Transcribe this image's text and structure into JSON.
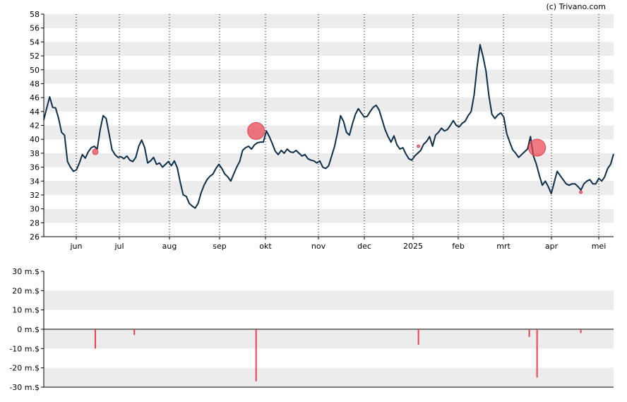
{
  "credit": "(c) Trivano.com",
  "chart_data": [
    {
      "type": "line",
      "title": "",
      "xlabel": "",
      "ylabel": "",
      "ylim": [
        26,
        58
      ],
      "y_ticks": [
        26,
        28,
        30,
        32,
        34,
        36,
        38,
        40,
        42,
        44,
        46,
        48,
        50,
        52,
        54,
        56,
        58
      ],
      "grid": "alternating horizontal bands, dotted vertical month lines",
      "x_tick_labels": [
        "jun",
        "jul",
        "aug",
        "sep",
        "okt",
        "nov",
        "dec",
        "2025",
        "feb",
        "mrt",
        "apr",
        "mei"
      ],
      "series": [
        {
          "color": "#0b2f4a",
          "x_range": [
            "2024-05-13",
            "2025-05-13"
          ],
          "values": [
            42.8,
            44.5,
            46.1,
            44.6,
            44.5,
            43.0,
            41.0,
            40.6,
            36.8,
            36.0,
            35.4,
            35.6,
            36.6,
            37.8,
            37.3,
            38.2,
            38.8,
            39.0,
            38.6,
            41.4,
            43.4,
            43.0,
            40.8,
            38.5,
            37.8,
            37.4,
            37.5,
            37.2,
            37.6,
            37.0,
            36.8,
            37.4,
            39.0,
            39.9,
            38.8,
            36.6,
            36.9,
            37.4,
            36.4,
            36.6,
            36.0,
            36.4,
            36.8,
            36.2,
            36.9,
            35.9,
            33.8,
            32.0,
            31.8,
            30.8,
            30.4,
            30.1,
            30.8,
            32.3,
            33.4,
            34.2,
            34.7,
            35.0,
            35.8,
            36.4,
            35.8,
            35.0,
            34.6,
            34.0,
            35.0,
            36.0,
            36.8,
            38.4,
            38.8,
            39.0,
            38.6,
            39.2,
            39.5,
            39.6,
            39.6,
            41.2,
            40.4,
            39.4,
            38.3,
            37.8,
            38.4,
            38.0,
            38.6,
            38.2,
            38.1,
            38.4,
            38.0,
            37.6,
            37.8,
            37.2,
            37.0,
            36.9,
            36.6,
            36.9,
            36.0,
            35.8,
            36.2,
            37.6,
            39.0,
            41.0,
            43.4,
            42.6,
            41.0,
            40.6,
            42.2,
            43.6,
            44.4,
            43.8,
            43.2,
            43.3,
            44.0,
            44.6,
            44.9,
            44.2,
            42.8,
            41.4,
            40.4,
            39.6,
            40.5,
            39.2,
            38.6,
            38.8,
            37.9,
            37.2,
            37.0,
            37.6,
            38.0,
            38.4,
            39.3,
            39.7,
            40.4,
            39.0,
            40.6,
            41.0,
            41.6,
            41.2,
            41.4,
            42.0,
            42.7,
            42.0,
            41.8,
            42.3,
            42.6,
            43.4,
            44.0,
            46.4,
            50.4,
            53.6,
            51.9,
            49.8,
            46.2,
            43.6,
            43.0,
            43.5,
            43.8,
            43.2,
            40.8,
            39.6,
            38.5,
            38.0,
            37.4,
            37.8,
            38.2,
            38.6,
            40.4,
            37.6,
            36.4,
            34.8,
            33.4,
            34.0,
            33.2,
            32.2,
            33.8,
            35.4,
            34.8,
            34.2,
            33.6,
            33.4,
            33.6,
            33.6,
            33.2,
            32.7,
            33.6,
            34.0,
            34.2,
            33.6,
            33.6,
            34.4,
            34.0,
            34.6,
            35.8,
            36.4,
            37.9
          ]
        }
      ],
      "markers": [
        {
          "date": "2024-06-15",
          "value": 38.2,
          "color": "#e8414e",
          "size": "small"
        },
        {
          "date": "2024-09-26",
          "value": 41.2,
          "color": "#e8414e",
          "size": "large"
        },
        {
          "date": "2025-01-08",
          "value": 39.0,
          "color": "#e8414e",
          "size": "tiny"
        },
        {
          "date": "2025-03-25",
          "value": 38.8,
          "color": "#e8414e",
          "size": "large"
        },
        {
          "date": "2025-04-22",
          "value": 32.4,
          "color": "#e8414e",
          "size": "tiny"
        }
      ]
    },
    {
      "type": "bar",
      "title": "",
      "ylabel": "",
      "ylim": [
        -30,
        30
      ],
      "y_ticks": [
        "30 m.$",
        "20 m.$",
        "10 m.$",
        "0 m.$",
        "-10 m.$",
        "-20 m.$",
        "-30 m.$"
      ],
      "y_tick_values": [
        30,
        20,
        10,
        0,
        -10,
        -20,
        -30
      ],
      "color": "#e8414e",
      "bars": [
        {
          "date": "2024-06-15",
          "value": -10
        },
        {
          "date": "2024-07-10",
          "value": -3
        },
        {
          "date": "2024-09-26",
          "value": -27
        },
        {
          "date": "2025-01-08",
          "value": -8
        },
        {
          "date": "2025-03-20",
          "value": -4
        },
        {
          "date": "2025-03-25",
          "value": -25
        },
        {
          "date": "2025-04-22",
          "value": -2
        }
      ]
    }
  ]
}
